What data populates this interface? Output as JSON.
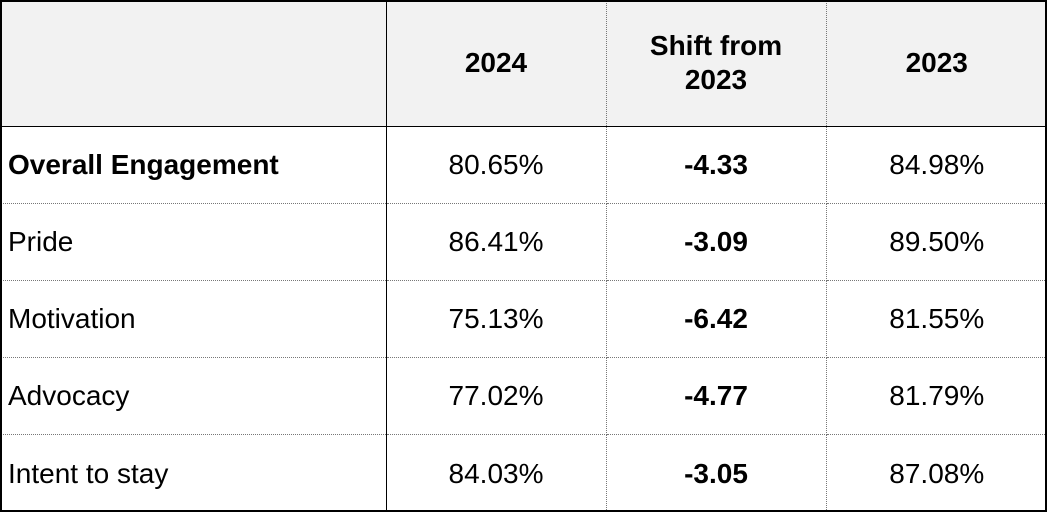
{
  "chart_data": {
    "type": "table",
    "columns": [
      "",
      "2024",
      "Shift from 2023",
      "2023"
    ],
    "header_lines": {
      "c1": "2024",
      "c2_line1": "Shift from",
      "c2_line2": "2023",
      "c3": "2023"
    },
    "rows": [
      {
        "label": "Overall Engagement",
        "v2024": "80.65%",
        "shift": "-4.33",
        "v2023": "84.98%"
      },
      {
        "label": "Pride",
        "v2024": "86.41%",
        "shift": "-3.09",
        "v2023": "89.50%"
      },
      {
        "label": "Motivation",
        "v2024": "75.13%",
        "shift": "-6.42",
        "v2023": "81.55%"
      },
      {
        "label": "Advocacy",
        "v2024": "77.02%",
        "shift": "-4.77",
        "v2023": "81.79%"
      },
      {
        "label": "Intent to stay",
        "v2024": "84.03%",
        "shift": "-3.05",
        "v2023": "87.08%"
      }
    ],
    "header_background": "#f2f2f2"
  }
}
